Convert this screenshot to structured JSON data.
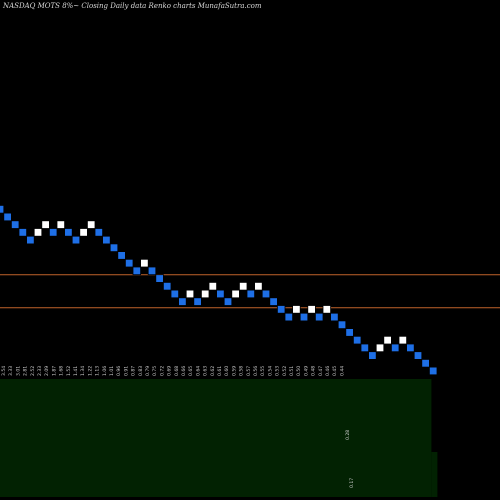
{
  "header": {
    "title": "NASDAQ MOTS 8%~  Closing Daily data  Renko  charts MunafaSutra.com"
  },
  "colors": {
    "background": "#000000",
    "up_brick": "#ffffff",
    "down_brick": "#1e6fe6",
    "brick_outline": "#000000",
    "level_line": "#c0622b",
    "volume_fill": "#022202",
    "volume_fill_dark": "#001400",
    "label": "#d0d0d0"
  },
  "chart_data": {
    "type": "renko",
    "bricks": [
      {
        "dir": "down",
        "level": 18
      },
      {
        "dir": "down",
        "level": 17
      },
      {
        "dir": "down",
        "level": 16
      },
      {
        "dir": "down",
        "level": 15
      },
      {
        "dir": "down",
        "level": 14
      },
      {
        "dir": "up",
        "level": 15
      },
      {
        "dir": "up",
        "level": 16
      },
      {
        "dir": "down",
        "level": 15
      },
      {
        "dir": "up",
        "level": 16
      },
      {
        "dir": "down",
        "level": 15
      },
      {
        "dir": "down",
        "level": 14
      },
      {
        "dir": "up",
        "level": 15
      },
      {
        "dir": "up",
        "level": 16
      },
      {
        "dir": "down",
        "level": 15
      },
      {
        "dir": "down",
        "level": 14
      },
      {
        "dir": "down",
        "level": 13
      },
      {
        "dir": "down",
        "level": 12
      },
      {
        "dir": "down",
        "level": 11
      },
      {
        "dir": "down",
        "level": 10
      },
      {
        "dir": "up",
        "level": 11
      },
      {
        "dir": "down",
        "level": 10
      },
      {
        "dir": "down",
        "level": 9
      },
      {
        "dir": "down",
        "level": 8
      },
      {
        "dir": "down",
        "level": 7
      },
      {
        "dir": "down",
        "level": 6
      },
      {
        "dir": "up",
        "level": 7
      },
      {
        "dir": "down",
        "level": 6
      },
      {
        "dir": "up",
        "level": 7
      },
      {
        "dir": "up",
        "level": 8
      },
      {
        "dir": "down",
        "level": 7
      },
      {
        "dir": "down",
        "level": 6
      },
      {
        "dir": "up",
        "level": 7
      },
      {
        "dir": "up",
        "level": 8
      },
      {
        "dir": "down",
        "level": 7
      },
      {
        "dir": "up",
        "level": 8
      },
      {
        "dir": "down",
        "level": 7
      },
      {
        "dir": "down",
        "level": 6
      },
      {
        "dir": "down",
        "level": 5
      },
      {
        "dir": "down",
        "level": 4
      },
      {
        "dir": "up",
        "level": 5
      },
      {
        "dir": "down",
        "level": 4
      },
      {
        "dir": "up",
        "level": 5
      },
      {
        "dir": "down",
        "level": 4
      },
      {
        "dir": "up",
        "level": 5
      },
      {
        "dir": "down",
        "level": 4
      },
      {
        "dir": "down",
        "level": 3
      },
      {
        "dir": "down",
        "level": 2
      },
      {
        "dir": "down",
        "level": 1
      },
      {
        "dir": "down",
        "level": 0
      },
      {
        "dir": "down",
        "level": -1
      },
      {
        "dir": "up",
        "level": 0
      },
      {
        "dir": "up",
        "level": 1
      },
      {
        "dir": "down",
        "level": 0
      },
      {
        "dir": "up",
        "level": 1
      },
      {
        "dir": "down",
        "level": 0
      },
      {
        "dir": "down",
        "level": -1
      },
      {
        "dir": "down",
        "level": -2
      },
      {
        "dir": "down",
        "level": -3
      }
    ],
    "level_lines": [
      9.5,
      5.2
    ],
    "x_tick_labels": [
      "3.54",
      "3.33",
      "3.01",
      "2.81",
      "2.52",
      "2.33",
      "2.09",
      "1.87",
      "1.68",
      "1.52",
      "1.41",
      "1.34",
      "1.22",
      "1.13",
      "1.06",
      "1.01",
      "0.96",
      "0.91",
      "0.87",
      "0.83",
      "0.79",
      "0.75",
      "0.72",
      "0.69",
      "0.68",
      "0.66",
      "0.65",
      "0.64",
      "0.63",
      "0.62",
      "0.61",
      "0.60",
      "0.59",
      "0.58",
      "0.57",
      "0.56",
      "0.55",
      "0.54",
      "0.53",
      "0.52",
      "0.51",
      "0.50",
      "0.49",
      "0.48",
      "0.47",
      "0.46",
      "0.45",
      "0.44"
    ],
    "volume_labels": [
      "0.28",
      "0.17"
    ]
  }
}
